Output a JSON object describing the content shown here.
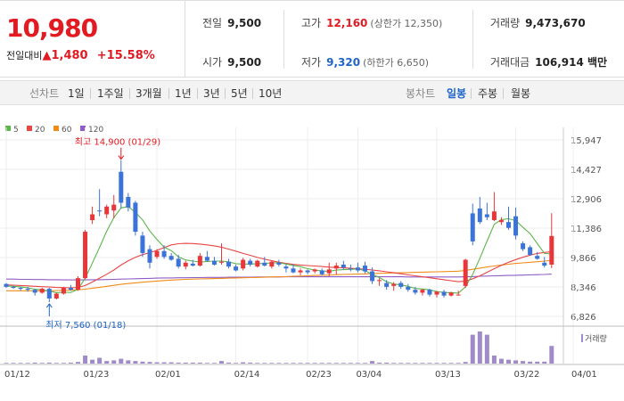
{
  "summary": {
    "current_price": "10,980",
    "change_label": "전일대비",
    "change_arrow": "▲",
    "change_amount": "1,480",
    "change_percent": "+15.58%",
    "prev_close_label": "전일",
    "prev_close": "9,500",
    "open_label": "시가",
    "open": "9,500",
    "high_label": "고가",
    "high": "12,160",
    "upper_limit": "(상한가 12,350)",
    "low_label": "저가",
    "low": "9,320",
    "lower_limit": "(하한가 6,650)",
    "volume_label": "거래량",
    "volume": "9,473,670",
    "amount_label": "거래대금",
    "amount": "106,914 백만"
  },
  "tabs": {
    "line_label": "선차트",
    "line_periods": [
      "1일",
      "1주일",
      "3개월",
      "1년",
      "3년",
      "5년",
      "10년"
    ],
    "candle_label": "봉차트",
    "candle_periods": [
      "일봉",
      "주봉",
      "월봉"
    ],
    "candle_selected": "일봉"
  },
  "colors": {
    "up": "#e8363b",
    "down": "#3b73d8",
    "ma5": "#5cb54a",
    "ma20": "#e84545",
    "ma60": "#f08c1a",
    "ma120": "#8f5cc6",
    "volume": "#a08ac9"
  },
  "chart_data": {
    "type": "candlestick",
    "legend": [
      {
        "label": "5",
        "color": "#5cb54a"
      },
      {
        "label": "20",
        "color": "#e84545"
      },
      {
        "label": "60",
        "color": "#f08c1a"
      },
      {
        "label": "120",
        "color": "#8f5cc6"
      }
    ],
    "y_ticks": [
      "15,947",
      "14,427",
      "12,906",
      "11,386",
      "9,866",
      "8,346",
      "6,826"
    ],
    "ylim": [
      6826,
      15947
    ],
    "x_ticks": [
      "01/12",
      "01/23",
      "02/01",
      "02/14",
      "02/23",
      "03/04",
      "03/13",
      "03/22",
      "04/01"
    ],
    "x_tick_index": [
      0,
      11,
      21,
      32,
      42,
      49,
      60,
      71,
      79
    ],
    "max_annotation": "최고 14,900 (01/29)",
    "min_annotation": "최저 7,560 (01/18)",
    "max_index": 16,
    "min_index": 6,
    "volume_label": "거래량",
    "candles": [
      [
        8500,
        8550,
        8300,
        8350
      ],
      [
        8350,
        8400,
        8250,
        8300
      ],
      [
        8300,
        8350,
        8150,
        8250
      ],
      [
        8250,
        8350,
        8100,
        8200
      ],
      [
        8200,
        8250,
        7900,
        8050
      ],
      [
        8050,
        8300,
        8000,
        8250
      ],
      [
        8250,
        8300,
        7560,
        7750
      ],
      [
        7750,
        8050,
        7700,
        8000
      ],
      [
        8000,
        8350,
        7950,
        8300
      ],
      [
        8300,
        8450,
        8150,
        8200
      ],
      [
        8200,
        8900,
        8150,
        8800
      ],
      [
        8800,
        11300,
        8750,
        11200
      ],
      [
        11800,
        12500,
        11600,
        12100
      ],
      [
        12300,
        13400,
        12000,
        12250
      ],
      [
        12100,
        12600,
        11900,
        12500
      ],
      [
        12300,
        13100,
        11900,
        12600
      ],
      [
        14300,
        14900,
        12400,
        12700
      ],
      [
        13000,
        13200,
        12250,
        12450
      ],
      [
        12700,
        12800,
        11000,
        11200
      ],
      [
        11000,
        11200,
        9900,
        10100
      ],
      [
        10300,
        10500,
        9300,
        9600
      ],
      [
        9900,
        10300,
        9800,
        10200
      ],
      [
        10200,
        10500,
        9800,
        9900
      ],
      [
        9950,
        10100,
        9700,
        9750
      ],
      [
        9800,
        10000,
        9300,
        9400
      ],
      [
        9400,
        9700,
        9250,
        9600
      ],
      [
        9550,
        9750,
        9400,
        9450
      ],
      [
        9450,
        10100,
        9400,
        9950
      ],
      [
        9900,
        10200,
        9650,
        9700
      ],
      [
        9700,
        9900,
        9450,
        9500
      ],
      [
        9600,
        10600,
        9500,
        9650
      ],
      [
        9650,
        9800,
        9300,
        9400
      ],
      [
        9400,
        9500,
        9150,
        9200
      ],
      [
        9300,
        9850,
        9200,
        9750
      ],
      [
        9700,
        9800,
        9400,
        9500
      ],
      [
        9400,
        9750,
        9350,
        9700
      ],
      [
        9600,
        9900,
        9400,
        9450
      ],
      [
        9400,
        9700,
        9300,
        9650
      ],
      [
        9600,
        9750,
        9400,
        9500
      ],
      [
        9400,
        9500,
        9100,
        9300
      ],
      [
        9300,
        9500,
        9050,
        9100
      ],
      [
        9100,
        9300,
        8950,
        9200
      ],
      [
        9200,
        9250,
        9000,
        9100
      ],
      [
        9150,
        9300,
        9050,
        9250
      ],
      [
        9200,
        9300,
        8950,
        9000
      ],
      [
        9050,
        9600,
        8900,
        9250
      ],
      [
        9300,
        9600,
        9000,
        9450
      ],
      [
        9500,
        9700,
        9250,
        9350
      ],
      [
        9300,
        9500,
        9150,
        9250
      ],
      [
        9350,
        9600,
        9100,
        9200
      ],
      [
        9450,
        9650,
        9050,
        9150
      ],
      [
        9150,
        9350,
        8500,
        8650
      ],
      [
        8650,
        8800,
        8400,
        8700
      ],
      [
        8550,
        8700,
        8200,
        8350
      ],
      [
        8400,
        8600,
        8150,
        8500
      ],
      [
        8550,
        8650,
        8250,
        8350
      ],
      [
        8350,
        8500,
        8100,
        8200
      ],
      [
        8200,
        8350,
        7950,
        8050
      ],
      [
        8050,
        8250,
        7900,
        8200
      ],
      [
        8200,
        8250,
        7850,
        7950
      ],
      [
        7950,
        8150,
        7800,
        8100
      ],
      [
        8100,
        8200,
        7800,
        7900
      ],
      [
        7900,
        8100,
        7850,
        8050
      ],
      [
        7950,
        8150,
        7900,
        7950
      ],
      [
        8400,
        9800,
        8300,
        9750
      ],
      [
        12150,
        12650,
        10500,
        10700
      ],
      [
        12400,
        13000,
        11600,
        11700
      ],
      [
        12100,
        12700,
        11800,
        11950
      ],
      [
        11800,
        13250,
        11750,
        12250
      ],
      [
        11700,
        11950,
        11550,
        11800
      ],
      [
        11700,
        12500,
        11300,
        11400
      ],
      [
        12000,
        12450,
        10800,
        11000
      ],
      [
        10600,
        10700,
        10200,
        10300
      ],
      [
        10400,
        10500,
        9950,
        10000
      ],
      [
        9950,
        10150,
        9750,
        9800
      ],
      [
        9600,
        9900,
        9350,
        9450
      ],
      [
        9500,
        12160,
        9320,
        10980
      ]
    ],
    "ma5": [
      8400,
      8380,
      8350,
      8300,
      8230,
      8200,
      8130,
      8050,
      8070,
      8060,
      8220,
      8800,
      9580,
      10390,
      11230,
      11930,
      12430,
      12500,
      12200,
      11810,
      11240,
      10800,
      10400,
      10220,
      9900,
      9740,
      9680,
      9630,
      9660,
      9680,
      9680,
      9640,
      9550,
      9530,
      9530,
      9550,
      9560,
      9590,
      9590,
      9530,
      9460,
      9390,
      9290,
      9220,
      9170,
      9150,
      9220,
      9240,
      9260,
      9270,
      9180,
      9000,
      8830,
      8620,
      8500,
      8450,
      8380,
      8270,
      8240,
      8200,
      8100,
      8060,
      8050,
      8030,
      8350,
      9000,
      9830,
      10720,
      11580,
      11830,
      11870,
      11780,
      11430,
      11100,
      10590,
      10080,
      10050
    ],
    "ma20": [
      8450,
      8440,
      8420,
      8400,
      8380,
      8360,
      8340,
      8320,
      8310,
      8300,
      8320,
      8420,
      8600,
      8800,
      9000,
      9220,
      9480,
      9700,
      9880,
      10020,
      10120,
      10240,
      10380,
      10520,
      10580,
      10600,
      10590,
      10560,
      10520,
      10470,
      10400,
      10300,
      10200,
      10080,
      9980,
      9870,
      9780,
      9700,
      9620,
      9560,
      9510,
      9480,
      9450,
      9430,
      9400,
      9370,
      9350,
      9330,
      9310,
      9290,
      9260,
      9220,
      9180,
      9130,
      9080,
      9030,
      8970,
      8920,
      8870,
      8820,
      8770,
      8720,
      8670,
      8620,
      8640,
      8770,
      8920,
      9100,
      9290,
      9460,
      9620,
      9760,
      9880,
      9990,
      10080,
      10130,
      10170
    ],
    "ma60": [
      8150,
      8150,
      8150,
      8150,
      8150,
      8150,
      8150,
      8160,
      8170,
      8180,
      8200,
      8230,
      8280,
      8330,
      8380,
      8430,
      8480,
      8520,
      8560,
      8590,
      8620,
      8650,
      8680,
      8700,
      8720,
      8740,
      8750,
      8760,
      8770,
      8780,
      8790,
      8800,
      8810,
      8820,
      8830,
      8840,
      8850,
      8860,
      8870,
      8880,
      8900,
      8910,
      8920,
      8940,
      8950,
      8960,
      8980,
      8990,
      9000,
      9010,
      9020,
      9040,
      9050,
      9060,
      9070,
      9080,
      9090,
      9100,
      9110,
      9120,
      9130,
      9140,
      9150,
      9160,
      9200,
      9260,
      9320,
      9380,
      9430,
      9480,
      9520,
      9560,
      9590,
      9620,
      9650,
      9680,
      9720
    ],
    "ma120": [
      8750,
      8750,
      8740,
      8740,
      8730,
      8730,
      8720,
      8720,
      8710,
      8710,
      8710,
      8710,
      8720,
      8720,
      8730,
      8740,
      8750,
      8760,
      8770,
      8780,
      8790,
      8800,
      8810,
      8810,
      8820,
      8820,
      8830,
      8830,
      8840,
      8840,
      8840,
      8850,
      8850,
      8850,
      8850,
      8860,
      8860,
      8860,
      8860,
      8870,
      8870,
      8870,
      8870,
      8870,
      8870,
      8870,
      8870,
      8870,
      8870,
      8870,
      8870,
      8870,
      8870,
      8870,
      8870,
      8870,
      8860,
      8860,
      8860,
      8860,
      8860,
      8860,
      8860,
      8860,
      8870,
      8880,
      8900,
      8910,
      8920,
      8930,
      8940,
      8950,
      8960,
      8970,
      8980,
      8990,
      9010
    ],
    "volume": [
      0.02,
      0.02,
      0.02,
      0.02,
      0.03,
      0.02,
      0.03,
      0.02,
      0.02,
      0.03,
      0.05,
      0.25,
      0.12,
      0.18,
      0.08,
      0.1,
      0.15,
      0.1,
      0.08,
      0.06,
      0.05,
      0.04,
      0.04,
      0.04,
      0.03,
      0.03,
      0.03,
      0.03,
      0.02,
      0.02,
      0.08,
      0.03,
      0.02,
      0.04,
      0.03,
      0.02,
      0.02,
      0.02,
      0.02,
      0.02,
      0.02,
      0.02,
      0.02,
      0.02,
      0.02,
      0.02,
      0.02,
      0.02,
      0.02,
      0.02,
      0.02,
      0.08,
      0.03,
      0.03,
      0.02,
      0.02,
      0.02,
      0.02,
      0.02,
      0.02,
      0.02,
      0.02,
      0.02,
      0.02,
      0.05,
      0.9,
      1.0,
      0.9,
      0.25,
      0.15,
      0.12,
      0.1,
      0.08,
      0.06,
      0.06,
      0.06,
      0.55
    ]
  }
}
